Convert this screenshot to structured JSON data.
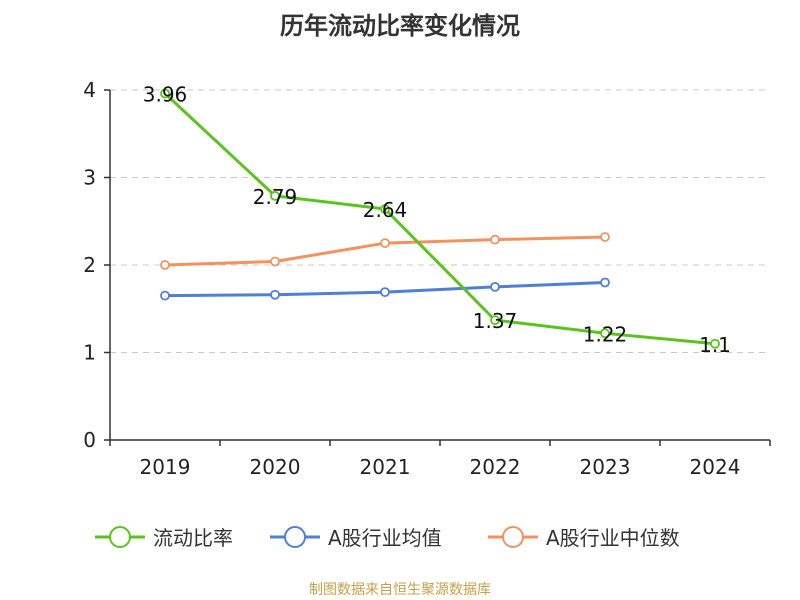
{
  "chart_data": {
    "type": "line",
    "title": "历年流动比率变化情况",
    "categories": [
      "2019",
      "2020",
      "2021",
      "2022",
      "2023",
      "2024"
    ],
    "ylim": [
      0,
      4
    ],
    "yticks": [
      0,
      1,
      2,
      3,
      4
    ],
    "grid": true,
    "legend_position": "bottom",
    "series": [
      {
        "name": "流动比率",
        "color": "#5ac41c",
        "values": [
          3.96,
          2.79,
          2.64,
          1.37,
          1.22,
          1.1
        ],
        "data_labels": [
          "3.96",
          "2.79",
          "2.64",
          "1.37",
          "1.22",
          "1.1"
        ]
      },
      {
        "name": "A股行业均值",
        "color": "#4f7fd6",
        "values": [
          1.65,
          1.66,
          1.69,
          1.75,
          1.8,
          null
        ]
      },
      {
        "name": "A股行业中位数",
        "color": "#f4925e",
        "values": [
          2.0,
          2.04,
          2.25,
          2.29,
          2.32,
          null
        ]
      }
    ]
  },
  "source_text": "制图数据来自恒生聚源数据库",
  "source_color": "#c9a04a"
}
